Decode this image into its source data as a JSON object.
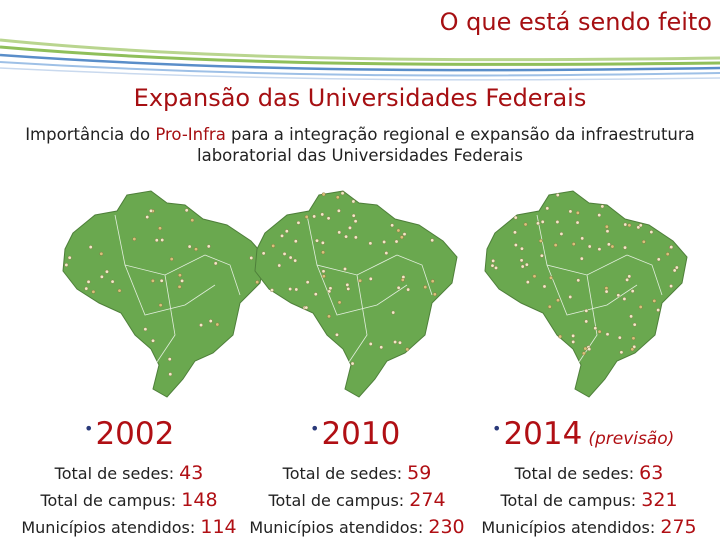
{
  "header": {
    "title": "O que está sendo feito"
  },
  "main": {
    "title": "Expansão das Universidades Federais",
    "subtitle_part1": "Importância do ",
    "subtitle_highlight": "Pro-Infra",
    "subtitle_part2": " para a integração regional e expansão da infraestrutura laboratorial das Universidades Federais"
  },
  "labels": {
    "sedes": "Total de sedes: ",
    "campus": "Total de campus: ",
    "municipios": "Municípios atendidos: "
  },
  "panels": [
    {
      "year": "2002",
      "note": "",
      "sedes": "43",
      "campus": "148",
      "municipios": "114"
    },
    {
      "year": "2010",
      "note": "",
      "sedes": "59",
      "campus": "274",
      "municipios": "230"
    },
    {
      "year": "2014",
      "note": "(previsão)",
      "sedes": "63",
      "campus": "321",
      "municipios": "275"
    }
  ],
  "colors": {
    "accent": "#a60f12",
    "map_fill": "#6aa84f",
    "stripe_green": "#8fbf5a",
    "stripe_blue": "#5a8ec9"
  }
}
